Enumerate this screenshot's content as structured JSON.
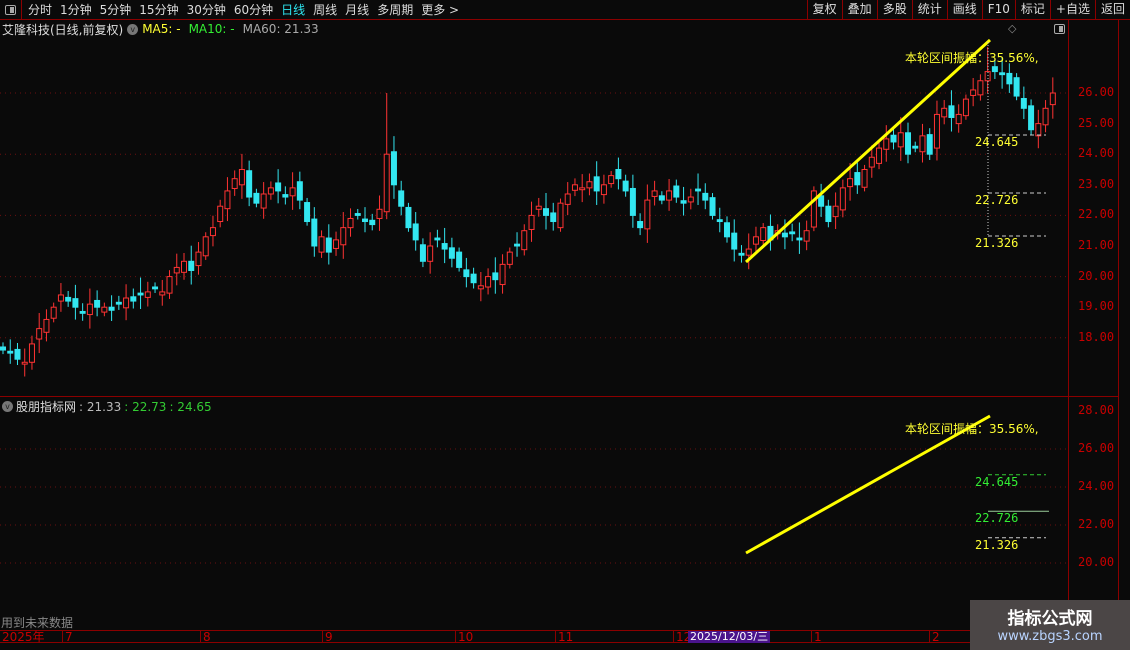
{
  "toolbar": {
    "periods": [
      "分时",
      "1分钟",
      "5分钟",
      "15分钟",
      "30分钟",
      "60分钟",
      "日线",
      "周线",
      "月线",
      "多周期",
      "更多 >"
    ],
    "active": "日线",
    "buttons": [
      "复权",
      "叠加",
      "多股",
      "统计",
      "画线",
      "F10",
      "标记",
      "+自选",
      "返回"
    ]
  },
  "info": {
    "title": "艾隆科技(日线,前复权)",
    "ma5": "MA5: -",
    "ma10": "MA10: -",
    "ma60": "MA60: 21.33"
  },
  "main": {
    "price_labels": [
      "26.00",
      "25.00",
      "24.00",
      "23.00",
      "22.00",
      "21.00",
      "20.00",
      "19.00",
      "18.00"
    ],
    "amplitude_text": "本轮区间振幅：35.56%,",
    "levels": [
      "24.645",
      "22.726",
      "21.326"
    ]
  },
  "indicator": {
    "name": "股朋指标网",
    "v1": ": 21.33",
    "v2": ": 22.73",
    "v3": ": 24.65",
    "price_labels": [
      "28.00",
      "26.00",
      "24.00",
      "22.00",
      "20.00"
    ],
    "amplitude_text": "本轮区间振幅：35.56%,",
    "levels": [
      "24.645",
      "22.726",
      "21.326"
    ],
    "future_note": "用到未来数据"
  },
  "time_axis": {
    "labels": [
      "2025年",
      "7",
      "8",
      "9",
      "10",
      "11",
      "12",
      "1",
      "2"
    ],
    "cursor_date": "2025/12/03/三"
  },
  "watermark": {
    "line1": "指标公式网",
    "line2": "www.zbgs3.com"
  },
  "colors": {
    "up": "#ff3333",
    "down": "#33e6f0",
    "trend": "#ffff00",
    "axis": "#c80000"
  },
  "chart_data": {
    "type": "candlestick",
    "ylim": [
      17,
      28
    ],
    "closes": [
      17.6,
      17.5,
      17.3,
      17.2,
      17.8,
      18.3,
      18.6,
      19.0,
      19.4,
      19.2,
      19.0,
      18.8,
      19.1,
      19.0,
      19.0,
      18.9,
      19.1,
      19.3,
      19.2,
      19.4,
      19.5,
      19.6,
      19.5,
      20.0,
      20.3,
      20.5,
      20.2,
      20.8,
      21.3,
      21.6,
      22.3,
      22.8,
      23.2,
      23.5,
      22.6,
      22.4,
      22.7,
      22.9,
      22.8,
      22.6,
      22.9,
      22.5,
      21.8,
      21.0,
      21.3,
      20.8,
      21.2,
      21.6,
      21.9,
      22.0,
      21.8,
      21.7,
      22.2,
      24.0,
      23.0,
      22.3,
      21.6,
      21.2,
      20.5,
      21.0,
      21.2,
      20.9,
      20.6,
      20.3,
      20.0,
      19.8,
      19.7,
      20.0,
      19.9,
      20.4,
      20.8,
      21.0,
      21.5,
      22.0,
      22.3,
      22.0,
      21.8,
      22.4,
      22.7,
      23.0,
      22.9,
      23.1,
      22.8,
      23.0,
      23.3,
      23.2,
      22.8,
      22.0,
      21.6,
      22.5,
      22.8,
      22.5,
      22.8,
      22.6,
      22.4,
      22.6,
      22.8,
      22.5,
      22.0,
      21.8,
      21.3,
      20.9,
      20.7,
      20.9,
      21.3,
      21.6,
      21.2,
      21.5,
      21.3,
      21.4,
      21.2,
      21.5,
      22.8,
      22.3,
      21.8,
      22.3,
      22.9,
      23.2,
      23.0,
      23.5,
      23.9,
      24.2,
      24.5,
      24.4,
      24.7,
      24.0,
      24.2,
      24.6,
      24.0,
      25.3,
      25.5,
      25.2,
      25.3,
      25.8,
      26.1,
      26.4,
      26.7,
      26.7,
      26.6,
      26.3,
      25.9,
      25.5,
      24.8,
      25.0,
      25.5,
      26.0
    ]
  }
}
